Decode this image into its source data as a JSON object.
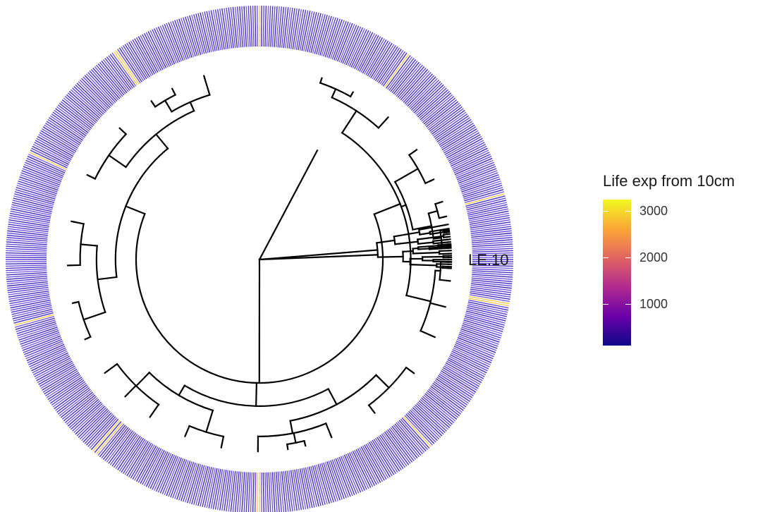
{
  "figure": {
    "type": "circular-phylogenetic-tree-with-heatmap-ring",
    "ring_label": "LE.10"
  },
  "legend": {
    "title": "Life exp from 10cm",
    "ticks": [
      {
        "value": 3000,
        "label": "3000"
      },
      {
        "value": 2000,
        "label": "2000"
      },
      {
        "value": 1000,
        "label": "1000"
      }
    ],
    "scale_min": 100,
    "scale_max": 3250,
    "colormap": "plasma",
    "colors": [
      "#0d0887",
      "#6a00a8",
      "#b12a90",
      "#e16462",
      "#fca636",
      "#f0f921"
    ]
  },
  "ring": {
    "dominant_color": "#5a3fd0",
    "highlight_color": "#f7c85a"
  }
}
